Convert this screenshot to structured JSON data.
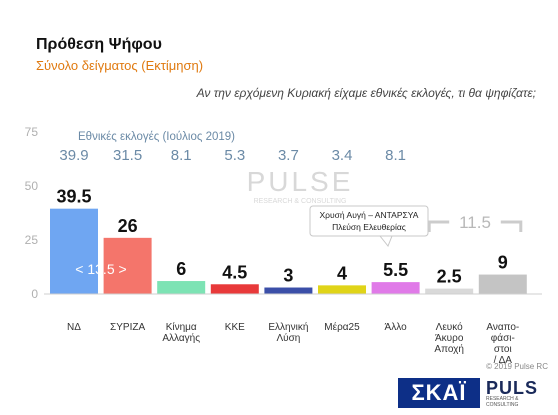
{
  "header": {
    "title": "Πρόθεση Ψήφου",
    "subtitle": "Σύνολο δείγματος   (Εκτίμηση)",
    "question": "Αν την ερχόμενη Κυριακή είχαμε εθνικές εκλογές, τι θα ψηφίζατε;"
  },
  "footer": {
    "copyright": "© 2019 Pulse RC"
  },
  "logos": {
    "skai": "ΣΚΑΪ",
    "pulse": "PULS",
    "pulse_sub": "RESEARCH & CONSULTING",
    "watermark": "PULSE",
    "watermark_sub": "RESEARCH & CONSULTING"
  },
  "chart_data": {
    "type": "bar",
    "categories": [
      "ΝΔ",
      "ΣΥΡΙΖΑ",
      "Κίνημα Αλλαγής",
      "ΚΚΕ",
      "Ελληνική Λύση",
      "Μέρα25",
      "Άλλο",
      "Λευκό Άκυρο Αποχή",
      "Αναποφάσιστοι / ΔΑ"
    ],
    "category_lines": [
      [
        "ΝΔ"
      ],
      [
        "ΣΥΡΙΖΑ"
      ],
      [
        "Κίνημα",
        "Αλλαγής"
      ],
      [
        "ΚΚΕ"
      ],
      [
        "Ελληνική",
        "Λύση"
      ],
      [
        "Μέρα25"
      ],
      [
        "Άλλο"
      ],
      [
        "Λευκό",
        "Άκυρο",
        "Αποχή"
      ],
      [
        "Αναπο-",
        "φάσι-",
        "στοι",
        "/ ΔΑ"
      ]
    ],
    "values": [
      39.5,
      26,
      6,
      4.5,
      3,
      4,
      5.5,
      2.5,
      9
    ],
    "value_labels": [
      "39.5",
      "26",
      "6",
      "4.5",
      "3",
      "4",
      "5.5",
      "2.5",
      "9"
    ],
    "colors": [
      "#6fa6f2",
      "#f4756b",
      "#7de3b4",
      "#e8393a",
      "#3b4fa8",
      "#e0d418",
      "#e07ae8",
      "#d9d9d9",
      "#c4c4c4"
    ],
    "previous_election": {
      "label": "Εθνικές εκλογές (Ιούλιος 2019)",
      "values": [
        "39.9",
        "31.5",
        "8.1",
        "5.3",
        "3.7",
        "3.4",
        "8.1"
      ]
    },
    "ylim": [
      0,
      75
    ],
    "yticks": [
      "0",
      "25",
      "50",
      "75"
    ],
    "gap_label": "< 13.5 >",
    "bracket_label": "11.5",
    "callout": [
      "Χρυσή Αυγή – ΑΝΤΑΡΣΥΑ",
      "Πλεύση Ελευθερίας"
    ],
    "grid": false
  }
}
